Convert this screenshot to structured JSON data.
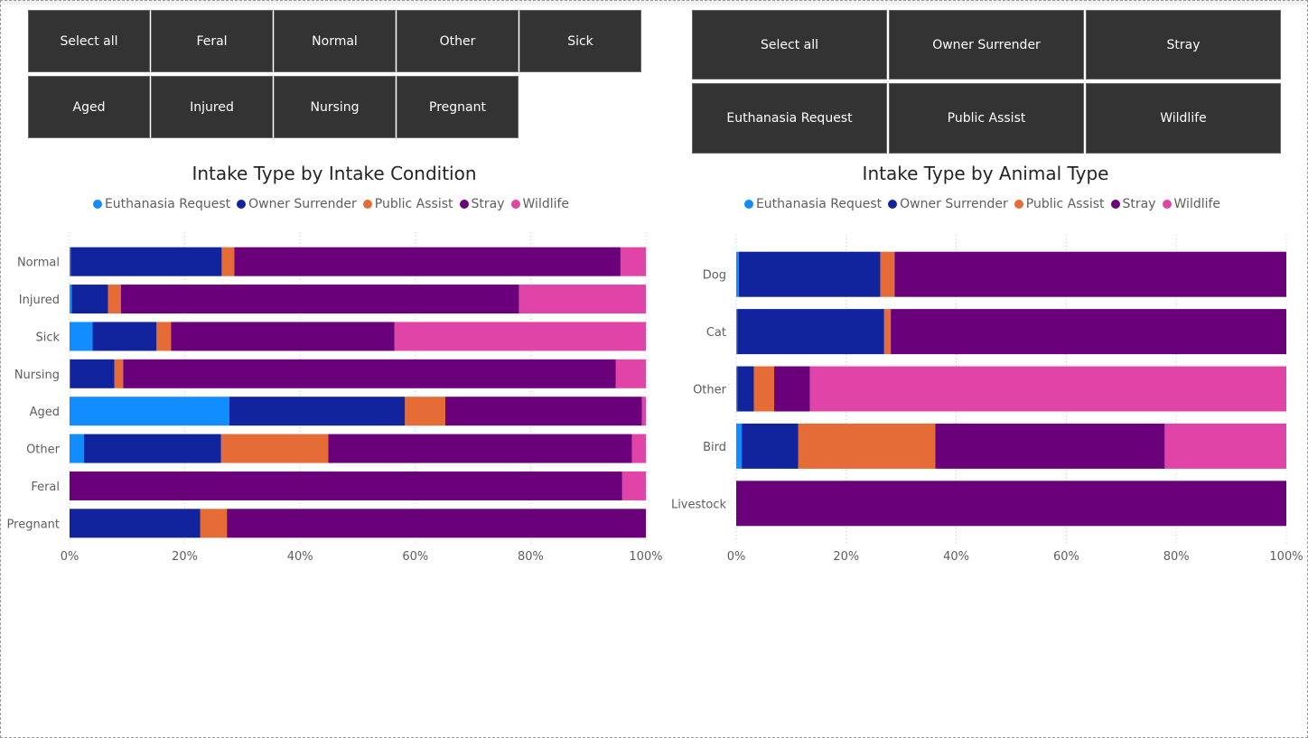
{
  "slicers": {
    "condition": [
      "Select all",
      "Feral",
      "Normal",
      "Other",
      "Sick",
      "Aged",
      "Injured",
      "Nursing",
      "Pregnant"
    ],
    "intake_type": [
      "Select all",
      "Owner Surrender",
      "Stray",
      "Euthanasia Request",
      "Public Assist",
      "Wildlife"
    ]
  },
  "colors": {
    "Euthanasia Request": "#118DFF",
    "Owner Surrender": "#12239E",
    "Public Assist": "#E66C37",
    "Stray": "#6B007B",
    "Wildlife": "#E044A7"
  },
  "chart_data": [
    {
      "type": "bar",
      "stacked": "100%",
      "orientation": "horizontal",
      "title": "Intake Type by Intake Condition",
      "legend_position": "top-center",
      "categories": [
        "Normal",
        "Injured",
        "Sick",
        "Nursing",
        "Aged",
        "Other",
        "Feral",
        "Pregnant"
      ],
      "series": [
        {
          "name": "Euthanasia Request",
          "values": [
            0.2,
            0.4,
            4.0,
            0.1,
            27.7,
            2.5,
            0,
            0
          ]
        },
        {
          "name": "Owner Surrender",
          "values": [
            26.2,
            6.3,
            11.1,
            7.7,
            30.5,
            23.8,
            0,
            22.7
          ]
        },
        {
          "name": "Public Assist",
          "values": [
            2.2,
            2.2,
            2.5,
            1.5,
            7.0,
            18.6,
            0,
            4.6
          ]
        },
        {
          "name": "Stray",
          "values": [
            67.0,
            69.1,
            38.8,
            85.5,
            34.1,
            52.7,
            95.9,
            72.7
          ]
        },
        {
          "name": "Wildlife",
          "values": [
            4.4,
            22.0,
            43.6,
            5.2,
            0.7,
            2.4,
            4.1,
            0
          ]
        }
      ],
      "x_ticks": [
        "0%",
        "20%",
        "40%",
        "60%",
        "80%",
        "100%"
      ],
      "xlim": [
        0,
        100
      ],
      "grid": "vertical dotted"
    },
    {
      "type": "bar",
      "stacked": "100%",
      "orientation": "horizontal",
      "title": "Intake Type by Animal Type",
      "legend_position": "top-center",
      "categories": [
        "Dog",
        "Cat",
        "Other",
        "Bird",
        "Livestock"
      ],
      "series": [
        {
          "name": "Euthanasia Request",
          "values": [
            0.5,
            0.2,
            0.2,
            1.0,
            0
          ]
        },
        {
          "name": "Owner Surrender",
          "values": [
            25.7,
            26.7,
            3.0,
            10.3,
            0
          ]
        },
        {
          "name": "Public Assist",
          "values": [
            2.6,
            1.2,
            3.7,
            24.9,
            0
          ]
        },
        {
          "name": "Stray",
          "values": [
            71.2,
            71.9,
            6.5,
            41.7,
            100
          ]
        },
        {
          "name": "Wildlife",
          "values": [
            0,
            0,
            86.6,
            22.1,
            0
          ]
        }
      ],
      "x_ticks": [
        "0%",
        "20%",
        "40%",
        "60%",
        "80%",
        "100%"
      ],
      "xlim": [
        0,
        100
      ],
      "grid": "vertical dotted"
    }
  ]
}
